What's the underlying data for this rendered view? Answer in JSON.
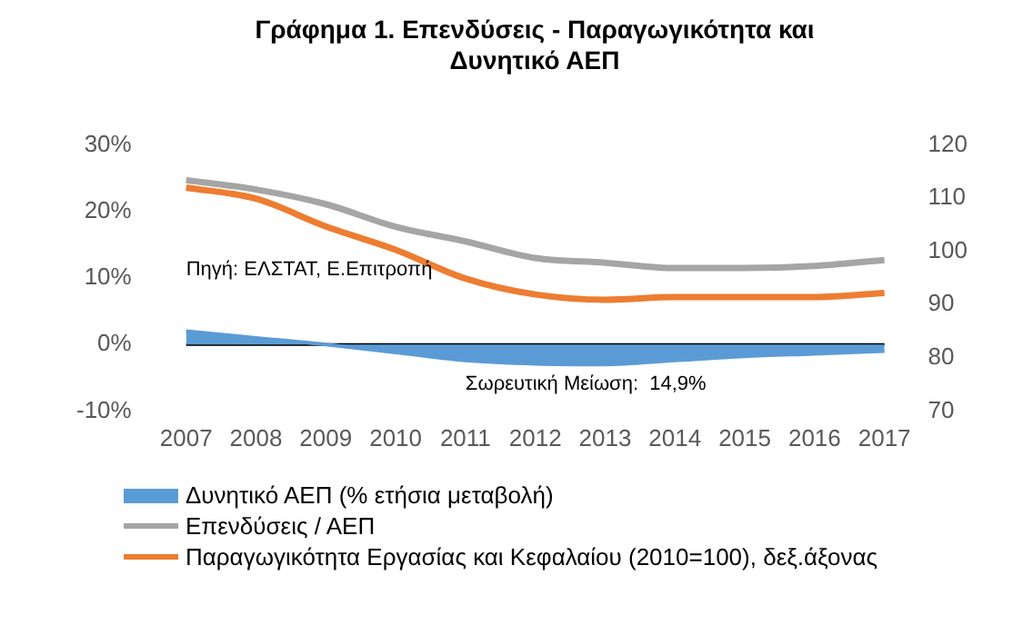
{
  "chart_data": {
    "type": "line",
    "title": "Γράφημα 1. Επενδύσεις - Παραγωγικότητα και Δυνητικό ΑΕΠ",
    "categories": [
      "2007",
      "2008",
      "2009",
      "2010",
      "2011",
      "2012",
      "2013",
      "2014",
      "2015",
      "2016",
      "2017"
    ],
    "series": [
      {
        "name": "Δυνητικό ΑΕΠ (% ετήσια μεταβολή)",
        "type": "area",
        "color": "#5b9bd5",
        "values": [
          2.0,
          1.0,
          0.0,
          -1.2,
          -2.4,
          -2.9,
          -3.0,
          -2.4,
          -1.8,
          -1.4,
          -1.0
        ]
      },
      {
        "name": "Επενδύσεις / ΑΕΠ",
        "type": "line",
        "color": "#a5a5a5",
        "values": [
          24.7,
          23.3,
          21.1,
          17.7,
          15.5,
          13.0,
          12.3,
          11.5,
          11.5,
          11.8,
          12.7
        ]
      },
      {
        "name": "Παραγωγικότητα Εργασίας και Κεφαλαίου (2010=100), δεξ.άξονας",
        "type": "line",
        "axis": "y2",
        "color": "#ed7d31",
        "values": [
          112.0,
          109.9,
          104.7,
          100.3,
          94.9,
          91.9,
          90.9,
          91.4,
          91.4,
          91.4,
          92.2
        ]
      }
    ],
    "ylim": [
      -10,
      30
    ],
    "yticks": [
      {
        "value": -10,
        "label": "-10%"
      },
      {
        "value": 0,
        "label": "0%"
      },
      {
        "value": 10,
        "label": "10%"
      },
      {
        "value": 20,
        "label": "20%"
      },
      {
        "value": 30,
        "label": "30%"
      }
    ],
    "y2lim": [
      70,
      120
    ],
    "y2ticks": [
      70,
      80,
      90,
      100,
      110,
      120
    ],
    "ref_lines": [
      {
        "axis": "y",
        "value": 0,
        "color": "#000000"
      }
    ],
    "annotations": [
      "Πηγή: ΕΛΣΤΑΤ, Ε.Επιτροπή",
      "Σωρευτική Μείωση:  14,9%"
    ],
    "grid": false,
    "legend": "bottom",
    "marker": "none"
  }
}
